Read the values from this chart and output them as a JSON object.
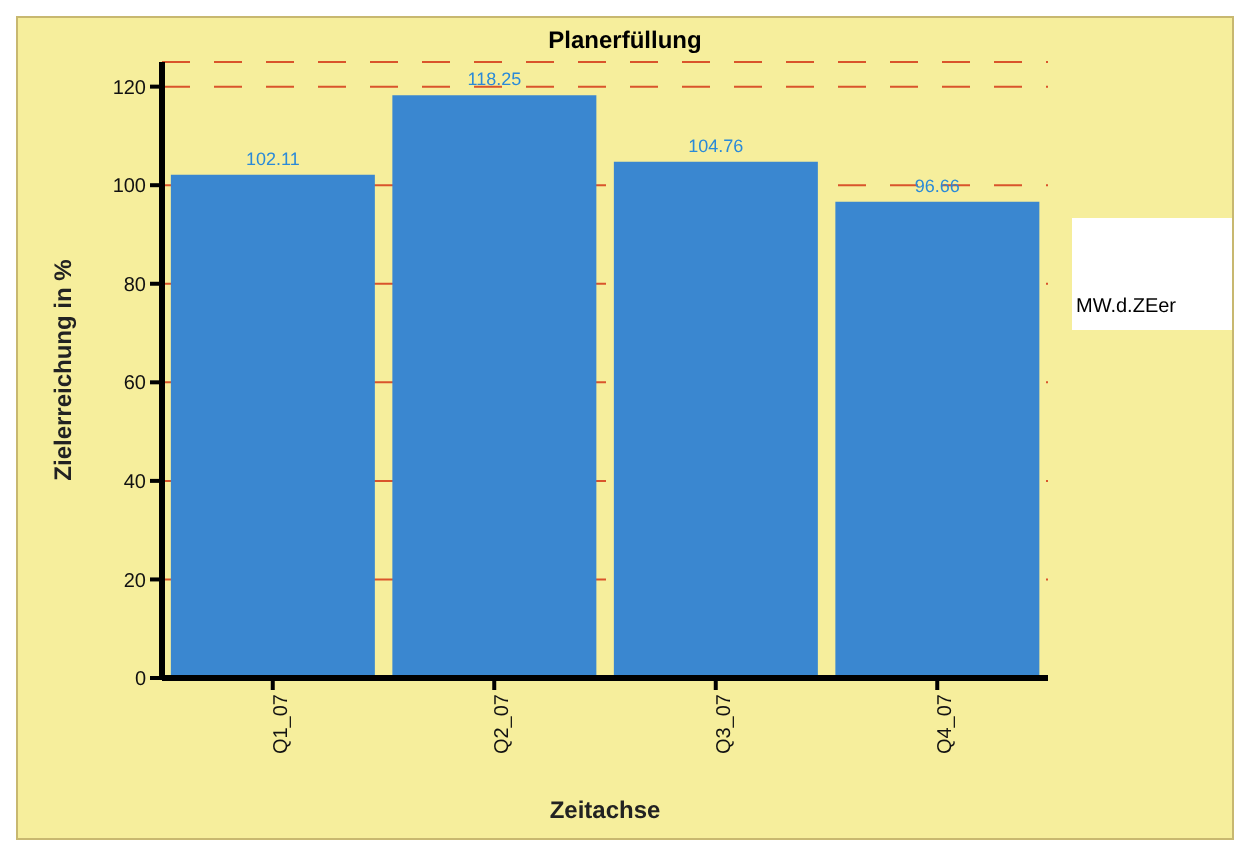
{
  "chart_data": {
    "type": "bar",
    "title": "Planerfüllung",
    "xlabel": "Zeitachse",
    "ylabel": "Zielerreichung in %",
    "categories": [
      "Q1_07",
      "Q2_07",
      "Q3_07",
      "Q4_07"
    ],
    "values": [
      102.11,
      118.25,
      104.76,
      96.66
    ],
    "color": "#3a87d0",
    "value_labels": [
      "102.11",
      "118.25",
      "104.76",
      "96.66"
    ],
    "ylim": [
      0,
      125
    ],
    "yticks": [
      0,
      20,
      40,
      60,
      80,
      100,
      120
    ],
    "grid": "y",
    "line_style": "dashed",
    "annotations": [
      "MW.d.ZEer"
    ]
  }
}
